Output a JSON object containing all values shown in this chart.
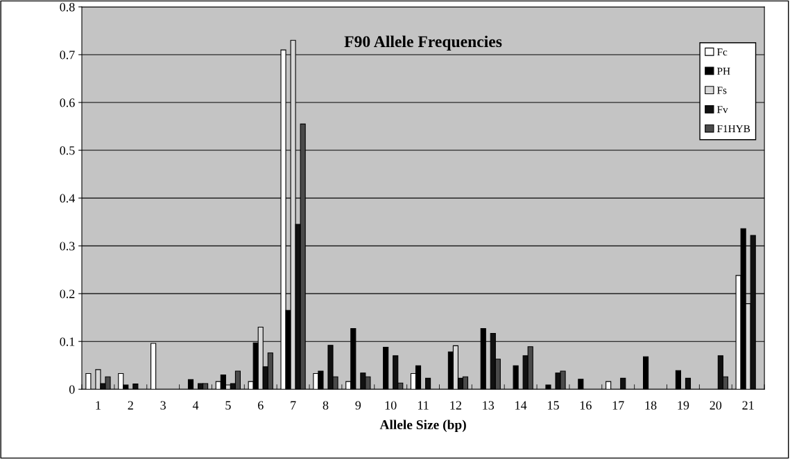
{
  "chart_data": {
    "type": "bar",
    "title": "F90 Allele Frequencies",
    "xlabel": "Allele Size (bp)",
    "categories": [
      "1",
      "2",
      "3",
      "4",
      "5",
      "6",
      "7",
      "8",
      "9",
      "10",
      "11",
      "12",
      "13",
      "14",
      "15",
      "16",
      "17",
      "18",
      "19",
      "20",
      "21"
    ],
    "series": [
      {
        "name": "Fc",
        "color": "#ffffff",
        "values": [
          0.033,
          0.033,
          0.096,
          null,
          0.016,
          0.016,
          0.71,
          0.033,
          0.016,
          null,
          0.033,
          null,
          null,
          null,
          null,
          null,
          0.016,
          null,
          null,
          null,
          0.238
        ]
      },
      {
        "name": "PH",
        "color": "#000000",
        "values": [
          null,
          0.009,
          null,
          0.02,
          0.03,
          0.097,
          0.165,
          0.038,
          0.127,
          0.088,
          0.049,
          0.078,
          0.127,
          0.049,
          0.009,
          0.021,
          null,
          0.068,
          0.039,
          null,
          0.336
        ]
      },
      {
        "name": "Fs",
        "color": "#d8d8d8",
        "values": [
          0.041,
          null,
          null,
          null,
          0.009,
          0.13,
          0.73,
          null,
          null,
          null,
          null,
          0.091,
          null,
          null,
          null,
          null,
          null,
          null,
          null,
          null,
          0.179
        ]
      },
      {
        "name": "Fv",
        "color": "#111111",
        "values": [
          0.012,
          0.011,
          null,
          0.012,
          0.012,
          0.047,
          0.345,
          0.092,
          0.034,
          0.07,
          0.023,
          0.023,
          0.117,
          0.07,
          0.034,
          null,
          0.023,
          null,
          0.023,
          0.07,
          0.322
        ]
      },
      {
        "name": "F1HYB",
        "color": "#4a4a4a",
        "values": [
          0.026,
          null,
          null,
          0.012,
          0.038,
          0.076,
          0.555,
          0.026,
          0.026,
          0.013,
          null,
          0.026,
          0.063,
          0.089,
          0.038,
          null,
          null,
          null,
          null,
          0.026,
          null
        ]
      }
    ],
    "ylim": [
      0,
      0.8
    ],
    "yticks": [
      0,
      0.1,
      0.2,
      0.3,
      0.4,
      0.5,
      0.6,
      0.7,
      0.8
    ],
    "grid": "y",
    "legend": "top right"
  }
}
